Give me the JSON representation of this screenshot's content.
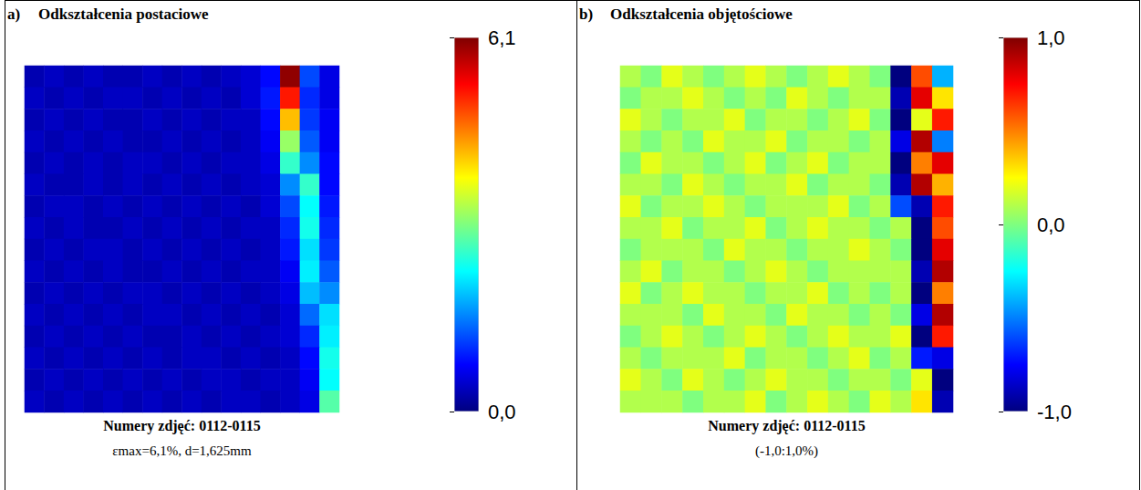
{
  "chart_data": [
    {
      "type": "heatmap",
      "panel": "a)",
      "title": "Odkształcenia postaciowe",
      "tick_labels": false,
      "captions": [
        "Numery zdjęć: 0112-0115",
        "εmax=6,1%, d=1,625mm"
      ],
      "color_range": [
        0,
        6.1
      ],
      "color_ticks": [
        {
          "value": 6.1,
          "label": "6,1"
        },
        {
          "value": 0,
          "label": "0,0"
        }
      ],
      "cells": [
        [
          0.3,
          0.4,
          0.3,
          0.4,
          0.3,
          0.3,
          0.4,
          0.3,
          0.4,
          0.3,
          0.4,
          0.5,
          0.8,
          6.0,
          1.2,
          0.6
        ],
        [
          0.4,
          0.3,
          0.4,
          0.3,
          0.4,
          0.4,
          0.3,
          0.4,
          0.3,
          0.4,
          0.3,
          0.5,
          0.9,
          5.2,
          1.0,
          0.6
        ],
        [
          0.3,
          0.4,
          0.3,
          0.4,
          0.3,
          0.3,
          0.4,
          0.3,
          0.4,
          0.3,
          0.4,
          0.4,
          0.8,
          4.2,
          1.1,
          0.7
        ],
        [
          0.4,
          0.3,
          0.4,
          0.3,
          0.4,
          0.3,
          0.3,
          0.4,
          0.3,
          0.4,
          0.3,
          0.4,
          0.7,
          3.2,
          1.3,
          0.7
        ],
        [
          0.3,
          0.4,
          0.3,
          0.4,
          0.3,
          0.4,
          0.4,
          0.3,
          0.4,
          0.3,
          0.4,
          0.4,
          0.6,
          2.6,
          1.6,
          0.8
        ],
        [
          0.4,
          0.3,
          0.3,
          0.4,
          0.3,
          0.4,
          0.3,
          0.4,
          0.3,
          0.4,
          0.3,
          0.4,
          0.5,
          1.6,
          2.6,
          0.8
        ],
        [
          0.3,
          0.4,
          0.4,
          0.3,
          0.4,
          0.3,
          0.4,
          0.3,
          0.4,
          0.3,
          0.4,
          0.3,
          0.5,
          1.2,
          2.3,
          0.9
        ],
        [
          0.4,
          0.3,
          0.4,
          0.3,
          0.3,
          0.4,
          0.3,
          0.4,
          0.3,
          0.4,
          0.3,
          0.4,
          0.4,
          1.0,
          2.4,
          1.0
        ],
        [
          0.3,
          0.4,
          0.3,
          0.4,
          0.4,
          0.3,
          0.4,
          0.3,
          0.4,
          0.3,
          0.4,
          0.3,
          0.4,
          0.9,
          2.1,
          1.1
        ],
        [
          0.4,
          0.3,
          0.4,
          0.3,
          0.4,
          0.3,
          0.3,
          0.4,
          0.3,
          0.4,
          0.3,
          0.4,
          0.4,
          0.7,
          2.2,
          1.3
        ],
        [
          0.3,
          0.4,
          0.3,
          0.4,
          0.3,
          0.4,
          0.4,
          0.3,
          0.4,
          0.3,
          0.4,
          0.3,
          0.4,
          0.6,
          1.9,
          1.6
        ],
        [
          0.4,
          0.3,
          0.4,
          0.3,
          0.4,
          0.3,
          0.4,
          0.4,
          0.3,
          0.4,
          0.3,
          0.4,
          0.3,
          0.5,
          1.4,
          2.1
        ],
        [
          0.3,
          0.4,
          0.3,
          0.4,
          0.3,
          0.4,
          0.3,
          0.3,
          0.4,
          0.3,
          0.4,
          0.3,
          0.4,
          0.5,
          1.0,
          2.2
        ],
        [
          0.4,
          0.3,
          0.4,
          0.3,
          0.4,
          0.3,
          0.4,
          0.3,
          0.4,
          0.4,
          0.3,
          0.4,
          0.3,
          0.4,
          0.8,
          2.4
        ],
        [
          0.3,
          0.4,
          0.3,
          0.4,
          0.3,
          0.4,
          0.3,
          0.4,
          0.3,
          0.4,
          0.4,
          0.3,
          0.4,
          0.4,
          0.7,
          2.3
        ],
        [
          0.4,
          0.3,
          0.4,
          0.3,
          0.4,
          0.3,
          0.4,
          0.3,
          0.4,
          0.3,
          0.4,
          0.4,
          0.3,
          0.4,
          0.6,
          2.8
        ]
      ]
    },
    {
      "type": "heatmap",
      "panel": "b)",
      "title": "Odkształcenia objętościowe",
      "tick_labels": false,
      "captions": [
        "Numery zdjęć: 0112-0115",
        "(-1,0:1,0%)"
      ],
      "color_range": [
        -1,
        1
      ],
      "color_ticks": [
        {
          "value": 1,
          "label": "1,0"
        },
        {
          "value": 0,
          "label": "0,0"
        },
        {
          "value": -1,
          "label": "-1,0"
        }
      ],
      "cells": [
        [
          0.1,
          0.0,
          0.2,
          0.1,
          0.0,
          0.1,
          0.2,
          0.1,
          0.0,
          0.1,
          0.2,
          0.1,
          0.0,
          -1.0,
          0.6,
          -0.4
        ],
        [
          0.0,
          0.1,
          0.1,
          0.2,
          0.1,
          0.0,
          0.1,
          0.0,
          0.2,
          0.1,
          0.0,
          0.1,
          0.1,
          -0.9,
          0.8,
          0.3
        ],
        [
          0.2,
          0.1,
          0.0,
          0.1,
          0.1,
          0.2,
          0.0,
          0.1,
          0.1,
          0.0,
          0.1,
          0.2,
          0.0,
          -1.0,
          0.2,
          0.7
        ],
        [
          0.1,
          0.0,
          0.1,
          0.0,
          0.2,
          0.1,
          0.1,
          0.2,
          0.0,
          0.1,
          0.1,
          0.0,
          0.1,
          -0.8,
          0.9,
          -0.5
        ],
        [
          0.0,
          0.2,
          0.1,
          0.1,
          0.0,
          0.1,
          0.2,
          0.0,
          0.1,
          0.2,
          0.0,
          0.1,
          0.1,
          -1.0,
          0.5,
          0.8
        ],
        [
          0.1,
          0.1,
          0.0,
          0.2,
          0.1,
          0.0,
          0.1,
          0.1,
          0.2,
          0.0,
          0.1,
          0.1,
          0.0,
          -0.9,
          0.9,
          0.4
        ],
        [
          0.2,
          0.0,
          0.1,
          0.1,
          0.2,
          0.1,
          0.0,
          0.1,
          0.1,
          0.1,
          0.2,
          0.0,
          0.1,
          -0.6,
          -0.9,
          0.7
        ],
        [
          0.1,
          0.1,
          0.2,
          0.0,
          0.1,
          0.1,
          0.2,
          0.0,
          0.1,
          0.2,
          0.1,
          0.1,
          0.0,
          0.1,
          -1.0,
          0.6
        ],
        [
          0.0,
          0.1,
          0.1,
          0.1,
          0.0,
          0.2,
          0.1,
          0.1,
          0.0,
          0.1,
          0.1,
          0.2,
          0.1,
          0.0,
          -1.0,
          0.8
        ],
        [
          0.1,
          0.2,
          0.0,
          0.1,
          0.1,
          0.0,
          0.1,
          0.2,
          0.1,
          0.0,
          0.1,
          0.1,
          0.1,
          0.1,
          -0.9,
          0.9
        ],
        [
          0.2,
          0.0,
          0.1,
          0.2,
          0.1,
          0.1,
          0.0,
          0.1,
          0.1,
          0.2,
          0.0,
          0.1,
          0.0,
          0.1,
          -1.0,
          0.5
        ],
        [
          0.1,
          0.1,
          0.1,
          0.0,
          0.2,
          0.1,
          0.1,
          0.0,
          0.2,
          0.1,
          0.1,
          0.0,
          0.1,
          0.0,
          -0.8,
          0.9
        ],
        [
          0.0,
          0.1,
          0.2,
          0.1,
          0.0,
          0.1,
          0.2,
          0.1,
          0.0,
          0.1,
          0.2,
          0.1,
          0.1,
          0.2,
          -1.0,
          0.7
        ],
        [
          0.1,
          0.0,
          0.1,
          0.1,
          0.1,
          0.2,
          0.0,
          0.1,
          0.1,
          0.0,
          0.1,
          0.2,
          0.0,
          0.1,
          -0.7,
          -0.8
        ],
        [
          0.2,
          0.1,
          0.0,
          0.2,
          0.1,
          0.0,
          0.1,
          0.2,
          0.1,
          0.1,
          0.0,
          0.1,
          0.1,
          0.0,
          0.2,
          -1.0
        ],
        [
          0.1,
          0.1,
          0.1,
          0.0,
          0.1,
          0.1,
          0.2,
          0.0,
          0.1,
          0.2,
          0.1,
          0.0,
          0.2,
          0.1,
          0.3,
          -0.9
        ]
      ]
    }
  ]
}
